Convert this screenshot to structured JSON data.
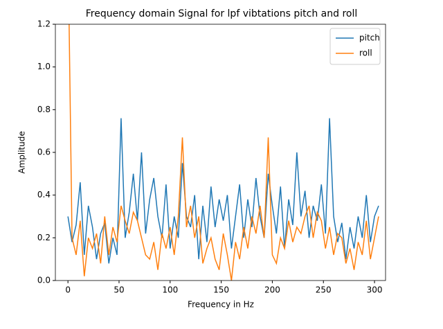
{
  "chart_data": {
    "type": "line",
    "title": "Frequency domain Signal for lpf vibtations pitch and roll",
    "xlabel": "Frequency in Hz",
    "ylabel": "Amplitude",
    "x": [
      0,
      4,
      8,
      12,
      16,
      20,
      24,
      28,
      32,
      36,
      40,
      44,
      48,
      52,
      56,
      60,
      64,
      68,
      72,
      76,
      80,
      84,
      88,
      92,
      96,
      100,
      104,
      108,
      112,
      116,
      120,
      124,
      128,
      132,
      136,
      140,
      144,
      148,
      152,
      156,
      160,
      164,
      168,
      172,
      176,
      180,
      184,
      188,
      192,
      196,
      200,
      204,
      208,
      212,
      216,
      220,
      224,
      228,
      232,
      236,
      240,
      244,
      248,
      252,
      256,
      260,
      264,
      268,
      272,
      276,
      280,
      284,
      288,
      292,
      296,
      300,
      304
    ],
    "series": [
      {
        "name": "pitch",
        "color": "#1f77b4",
        "values": [
          0.3,
          0.18,
          0.26,
          0.46,
          0.12,
          0.35,
          0.25,
          0.1,
          0.22,
          0.27,
          0.08,
          0.2,
          0.12,
          0.76,
          0.2,
          0.32,
          0.5,
          0.28,
          0.6,
          0.22,
          0.38,
          0.48,
          0.3,
          0.2,
          0.45,
          0.15,
          0.3,
          0.2,
          0.55,
          0.3,
          0.25,
          0.4,
          0.1,
          0.35,
          0.18,
          0.44,
          0.25,
          0.38,
          0.28,
          0.4,
          0.15,
          0.3,
          0.45,
          0.2,
          0.38,
          0.25,
          0.48,
          0.3,
          0.2,
          0.5,
          0.35,
          0.22,
          0.44,
          0.15,
          0.38,
          0.26,
          0.6,
          0.3,
          0.42,
          0.2,
          0.35,
          0.28,
          0.45,
          0.22,
          0.76,
          0.3,
          0.18,
          0.27,
          0.1,
          0.25,
          0.15,
          0.3,
          0.2,
          0.4,
          0.18,
          0.3,
          0.35
        ]
      },
      {
        "name": "roll",
        "color": "#ff7f0e",
        "values": [
          1.6,
          0.2,
          0.12,
          0.28,
          0.02,
          0.2,
          0.15,
          0.22,
          0.08,
          0.3,
          0.12,
          0.25,
          0.18,
          0.35,
          0.28,
          0.22,
          0.32,
          0.28,
          0.2,
          0.12,
          0.1,
          0.18,
          0.05,
          0.22,
          0.15,
          0.25,
          0.12,
          0.3,
          0.67,
          0.25,
          0.35,
          0.2,
          0.3,
          0.08,
          0.15,
          0.2,
          0.1,
          0.05,
          0.22,
          0.12,
          0.0,
          0.18,
          0.1,
          0.25,
          0.15,
          0.3,
          0.22,
          0.35,
          0.2,
          0.67,
          0.12,
          0.08,
          0.2,
          0.15,
          0.28,
          0.18,
          0.25,
          0.22,
          0.3,
          0.35,
          0.2,
          0.32,
          0.28,
          0.15,
          0.25,
          0.12,
          0.22,
          0.2,
          0.08,
          0.15,
          0.05,
          0.18,
          0.12,
          0.28,
          0.1,
          0.2,
          0.3
        ]
      }
    ],
    "xlim": [
      -12.3,
      310.8
    ],
    "ylim": [
      0,
      1.2
    ],
    "xticks": [
      0,
      50,
      100,
      150,
      200,
      250,
      300
    ],
    "yticks": [
      {
        "value": 0,
        "label": "0.0"
      },
      0.2,
      0.4,
      0.6,
      0.8,
      {
        "value": 1,
        "label": "1.0"
      },
      1.2
    ],
    "legend": "upper right"
  }
}
